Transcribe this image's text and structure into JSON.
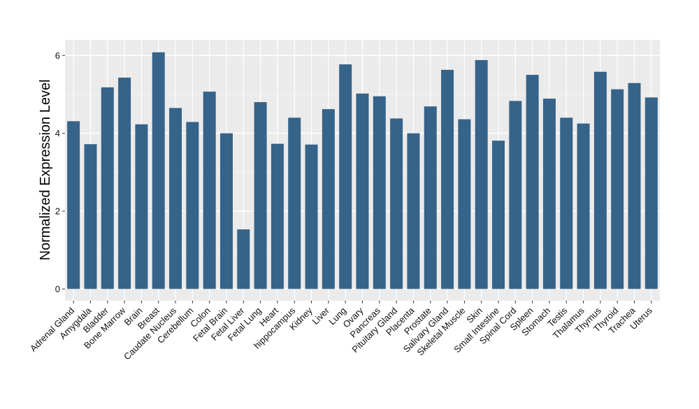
{
  "chart_data": {
    "type": "bar",
    "title": "",
    "xlabel": "",
    "ylabel": "Normalized Expression Level",
    "ylim": [
      -0.3,
      6.4
    ],
    "yticks": [
      0,
      2,
      4,
      6
    ],
    "grid": true,
    "legend": "none",
    "colors": {
      "bar": "#366389",
      "panel": "#ebebeb",
      "grid_major": "#ffffff",
      "grid_minor": "#f5f5f5",
      "tick_text": "#000000"
    },
    "categories": [
      "Adrenal Gland",
      "Amygdala",
      "Bladder",
      "Bone Marrow",
      "Brain",
      "Breast",
      "Caudate Nucleus",
      "Cerebellum",
      "Colon",
      "Fetal Brain",
      "Fetal Liver",
      "Fetal Lung",
      "Heart",
      "hippocampus",
      "Kidney",
      "Liver",
      "Lung",
      "Ovary",
      "Pancreas",
      "Pituitary Gland",
      "Placenta",
      "Prostate",
      "Salivary Gland",
      "Skeletal Muscle",
      "Skin",
      "Small Intestine",
      "Spinal Cord",
      "Spleen",
      "Stomach",
      "Testis",
      "Thalamus",
      "Thymus",
      "Thyroid",
      "Trachea",
      "Uterus"
    ],
    "values": [
      4.31,
      3.72,
      5.18,
      5.43,
      4.23,
      6.08,
      4.65,
      4.29,
      5.07,
      4.0,
      1.53,
      4.8,
      3.73,
      4.4,
      3.71,
      4.62,
      5.77,
      5.02,
      4.95,
      4.38,
      4.0,
      4.69,
      5.63,
      4.36,
      5.88,
      3.81,
      4.83,
      5.5,
      4.89,
      4.4,
      4.25,
      5.58,
      5.13,
      5.29,
      4.92
    ]
  }
}
